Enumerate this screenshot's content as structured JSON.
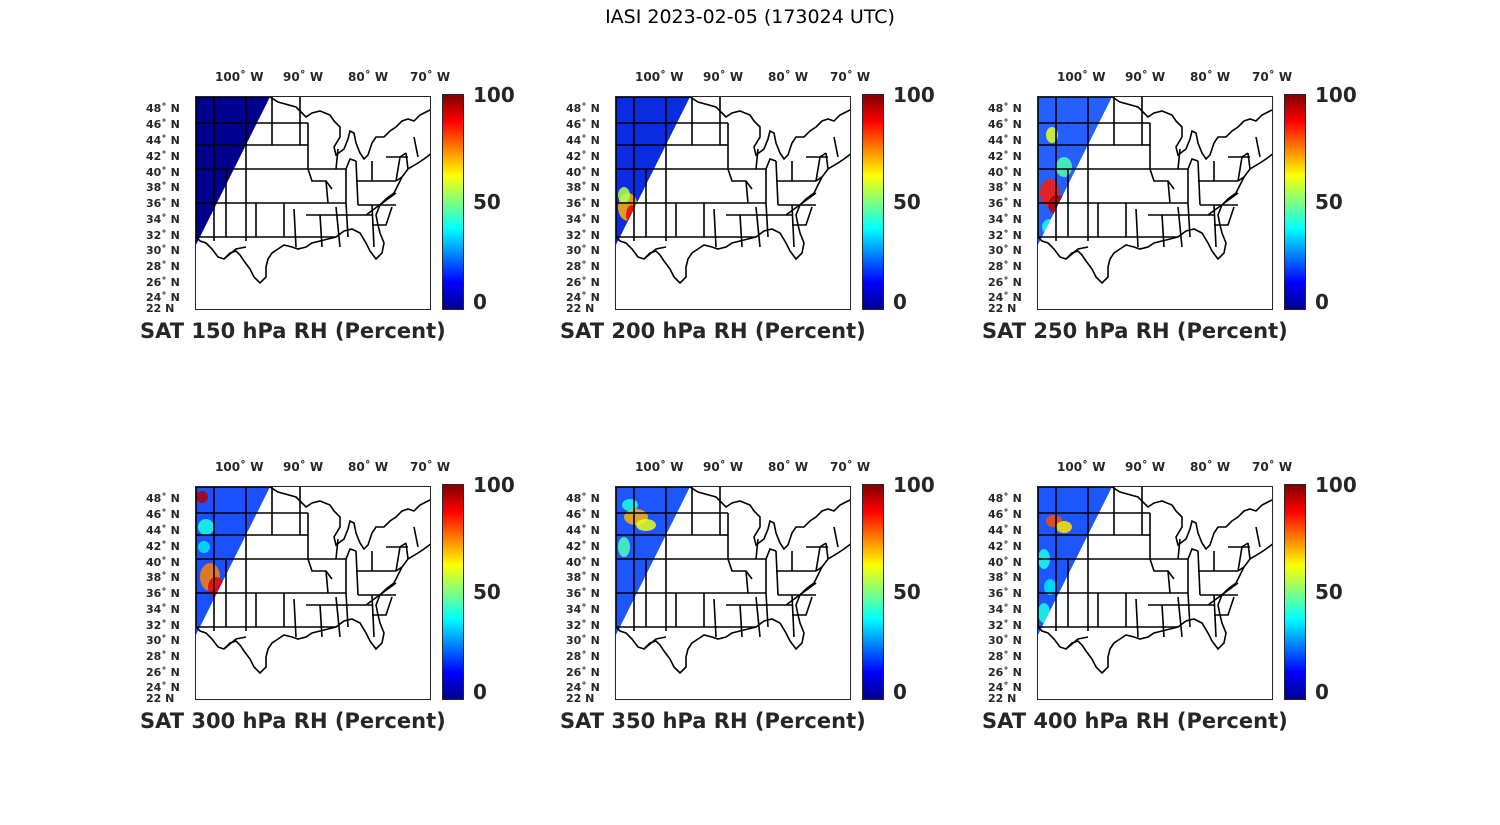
{
  "figure_title": "IASI 2023-02-05 (173024 UTC)",
  "colors": {
    "colormap": [
      "#00008f",
      "#0000ff",
      "#00ffff",
      "#ffff00",
      "#ff0000",
      "#800000"
    ],
    "state_lines": "#000000"
  },
  "lon_ticks": [
    "100˚ W",
    "90˚ W",
    "80˚ W",
    "70˚ W"
  ],
  "lat_ticks": [
    "48˚ N",
    "46˚ N",
    "44˚ N",
    "42˚ N",
    "40˚ N",
    "38˚ N",
    "36˚ N",
    "34˚ N",
    "32˚ N",
    "30˚ N",
    "28˚ N",
    "26˚ N",
    "24˚ N",
    "22 N"
  ],
  "colorbar_ticks": [
    "100",
    "50",
    "0"
  ],
  "colorbar_range": [
    0,
    100
  ],
  "panels": [
    {
      "title": "SAT 150 hPa RH (Percent)",
      "pressure_hPa": 150,
      "rh_pattern": "uniform low (~0%)"
    },
    {
      "title": "SAT 200 hPa RH (Percent)",
      "pressure_hPa": 200,
      "rh_pattern": "low with moist streak (~60-90%) over 36-40N"
    },
    {
      "title": "SAT 250 hPa RH (Percent)",
      "pressure_hPa": 250,
      "rh_pattern": "mixed 20-95%, maximum near 38N"
    },
    {
      "title": "SAT 300 hPa RH (Percent)",
      "pressure_hPa": 300,
      "rh_pattern": "mixed 10-90%, moist band near 36-40N"
    },
    {
      "title": "SAT 350 hPa RH (Percent)",
      "pressure_hPa": 350,
      "rh_pattern": "mostly 10-40%, moist band near 44-46N"
    },
    {
      "title": "SAT 400 hPa RH (Percent)",
      "pressure_hPa": 400,
      "rh_pattern": "mostly 10-40%, moist spot near 45N"
    }
  ]
}
